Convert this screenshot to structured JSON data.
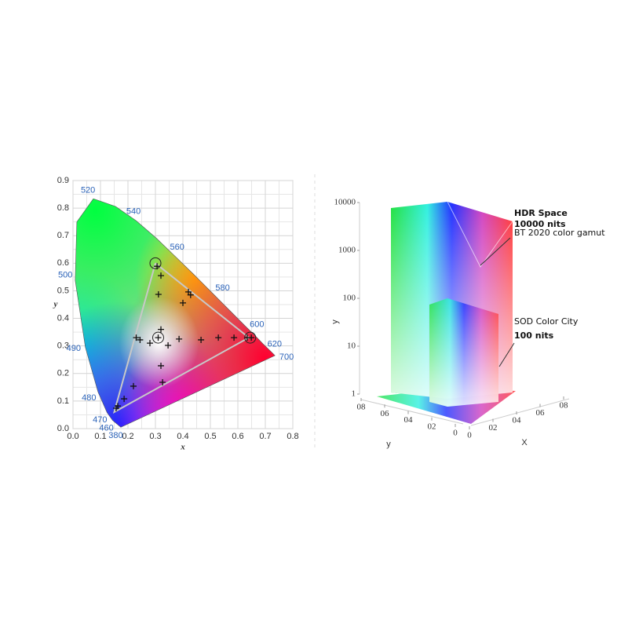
{
  "chart_data": [
    {
      "type": "chromaticity",
      "xlabel": "x",
      "ylabel": "y",
      "xlim": [
        0,
        0.8
      ],
      "ylim": [
        0,
        0.9
      ],
      "xticks": [
        {
          "value": 0,
          "label": "0.0"
        },
        0.1,
        0.2,
        0.3,
        0.4,
        0.5,
        0.6,
        0.7,
        0.8
      ],
      "yticks": [
        {
          "value": 0,
          "label": "0.0"
        },
        0.1,
        0.2,
        0.3,
        0.4,
        0.5,
        0.6,
        0.7,
        0.8,
        0.9
      ],
      "grid": true,
      "locus": {
        "x": [
          0.174,
          0.144,
          0.124,
          0.091,
          0.045,
          0.008,
          0.014,
          0.074,
          0.155,
          0.23,
          0.302,
          0.373,
          0.444,
          0.512,
          0.575,
          0.627,
          0.666,
          0.691,
          0.719,
          0.735
        ],
        "y": [
          0.005,
          0.03,
          0.058,
          0.133,
          0.295,
          0.538,
          0.75,
          0.834,
          0.806,
          0.754,
          0.692,
          0.624,
          0.555,
          0.487,
          0.424,
          0.372,
          0.334,
          0.308,
          0.281,
          0.265
        ],
        "labels": [
          "380",
          "460",
          "470",
          "480",
          "490",
          "500",
          null,
          "520",
          null,
          "540",
          null,
          "560",
          null,
          "580",
          null,
          "600",
          null,
          "620",
          null,
          "700"
        ]
      },
      "gamut": {
        "x": [
          0.3,
          0.64,
          0.15,
          0.3
        ],
        "y": [
          0.6,
          0.33,
          0.06,
          0.6
        ],
        "color": "#c8c8c8"
      },
      "points": {
        "x": [
          0.306,
          0.32,
          0.311,
          0.42,
          0.428,
          0.4,
          0.23,
          0.244,
          0.28,
          0.31,
          0.32,
          0.346,
          0.32,
          0.326,
          0.386,
          0.466,
          0.529,
          0.586,
          0.634,
          0.649,
          0.22,
          0.186,
          0.157,
          0.163
        ],
        "y": [
          0.589,
          0.555,
          0.487,
          0.496,
          0.485,
          0.456,
          0.33,
          0.322,
          0.31,
          0.33,
          0.36,
          0.302,
          0.228,
          0.168,
          0.325,
          0.322,
          0.33,
          0.33,
          0.33,
          0.33,
          0.154,
          0.108,
          0.074,
          0.082
        ],
        "color": "#111"
      }
    },
    {
      "type": "volume",
      "ylabel": "y",
      "xlabel": "X",
      "log_scale": true,
      "ylim": [
        1,
        10000
      ],
      "yticks": [
        1,
        10,
        100,
        1000,
        10000
      ],
      "floor_y_ticks": [
        {
          "value": 0.8,
          "label": "08"
        },
        {
          "value": 0.6,
          "label": "06"
        },
        {
          "value": 0.4,
          "label": "04"
        },
        {
          "value": 0.2,
          "label": "02"
        },
        0
      ],
      "floor_x_ticks": [
        0,
        {
          "value": 0.2,
          "label": "02"
        },
        {
          "value": 0.4,
          "label": "04"
        },
        {
          "value": 0.6,
          "label": "06"
        },
        {
          "value": 0.8,
          "label": "08"
        }
      ],
      "floor_lim": [
        0,
        0.8
      ],
      "annotations": {
        "hdr_title": "HDR Space",
        "hdr_nits": "10000 nits",
        "hdr_gamut": "BT 2020 color gamut",
        "sdr_title": "SOD Color City",
        "sdr_nits": "100 nits"
      }
    }
  ]
}
